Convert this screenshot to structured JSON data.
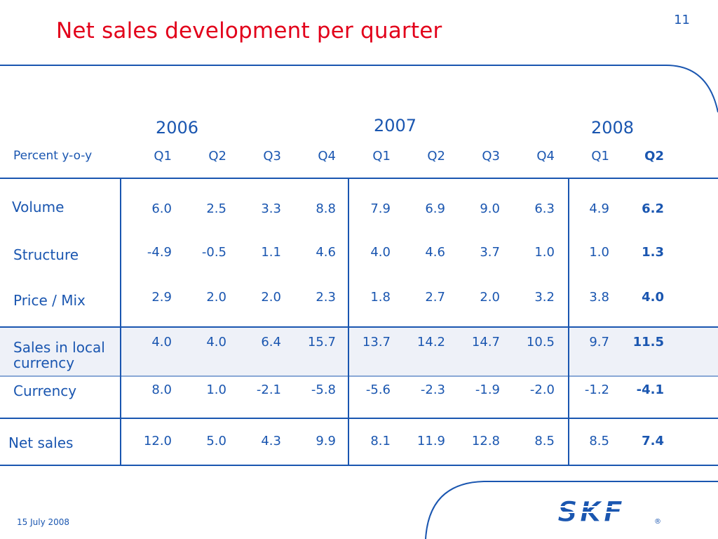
{
  "slide": {
    "title": "Net sales development per quarter",
    "page_number": "11",
    "date": "15 July 2008",
    "logo_text": "SKF"
  },
  "table": {
    "row_header_label": "Percent y-o-y",
    "years": [
      "2006",
      "2007",
      "2008"
    ],
    "quarters": [
      "Q1",
      "Q2",
      "Q3",
      "Q4",
      "Q1",
      "Q2",
      "Q3",
      "Q4",
      "Q1",
      "Q2"
    ],
    "rows": [
      {
        "label": "Volume",
        "values": [
          "6.0",
          "2.5",
          "3.3",
          "8.8",
          "7.9",
          "6.9",
          "9.0",
          "6.3",
          "4.9",
          "6.2"
        ]
      },
      {
        "label": "Structure",
        "values": [
          "-4.9",
          "-0.5",
          "1.1",
          "4.6",
          "4.0",
          "4.6",
          "3.7",
          "1.0",
          "1.0",
          "1.3"
        ]
      },
      {
        "label": "Price / Mix",
        "values": [
          "2.9",
          "2.0",
          "2.0",
          "2.3",
          "1.8",
          "2.7",
          "2.0",
          "3.2",
          "3.8",
          "4.0"
        ]
      },
      {
        "label_line1": "Sales in local",
        "label_line2": "currency",
        "values": [
          "4.0",
          "4.0",
          "6.4",
          "15.7",
          "13.7",
          "14.2",
          "14.7",
          "10.5",
          "9.7",
          "11.5"
        ]
      },
      {
        "label": "Currency",
        "values": [
          "8.0",
          "1.0",
          "-2.1",
          "-5.8",
          "-5.6",
          "-2.3",
          "-1.9",
          "-2.0",
          "-1.2",
          "-4.1"
        ]
      },
      {
        "label": "Net sales",
        "values": [
          "12.0",
          "5.0",
          "4.3",
          "9.9",
          "8.1",
          "11.9",
          "12.8",
          "8.5",
          "8.5",
          "7.4"
        ]
      }
    ]
  },
  "colors": {
    "title_red": "#e2001a",
    "skf_blue": "#1a56b0",
    "highlight_band": "#eef1f8"
  }
}
